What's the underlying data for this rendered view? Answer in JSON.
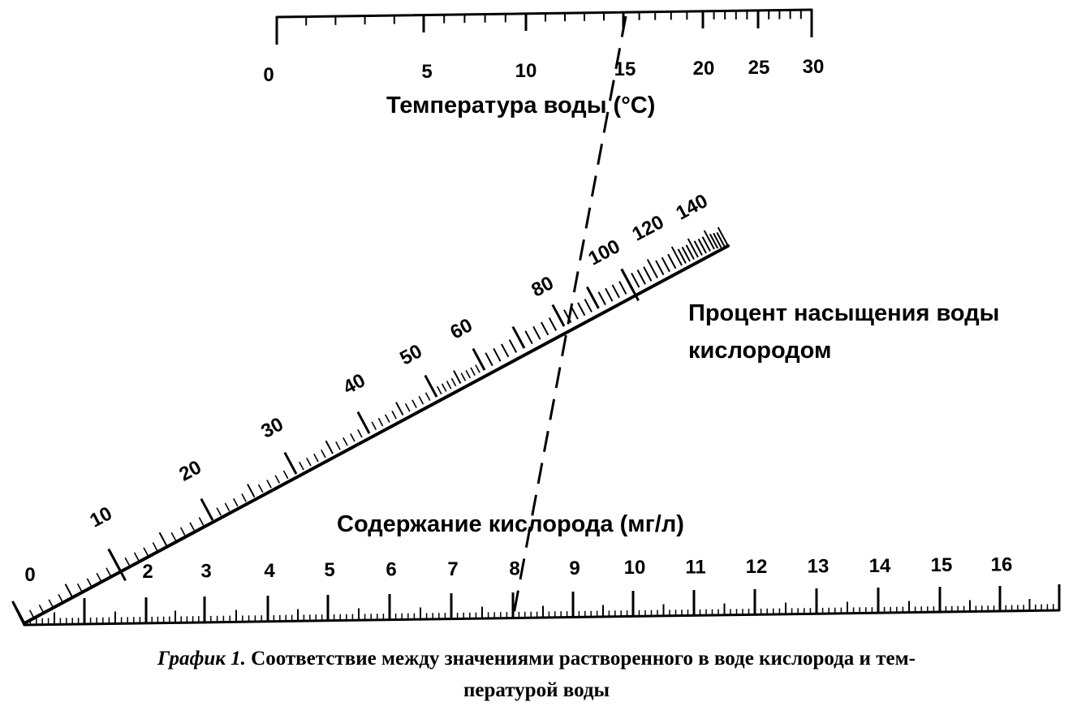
{
  "temperature_scale": {
    "title": "Температура воды (°C)",
    "labels": [
      {
        "value": 0,
        "text": "0"
      },
      {
        "value": 5,
        "text": "5"
      },
      {
        "value": 10,
        "text": "10"
      },
      {
        "value": 15,
        "text": "15"
      },
      {
        "value": 20,
        "text": "20"
      },
      {
        "value": 25,
        "text": "25"
      },
      {
        "value": 30,
        "text": "30"
      }
    ]
  },
  "saturation_scale": {
    "title_line1": "Процент насыщения воды",
    "title_line2": "кислородом",
    "labels": [
      {
        "value": 0,
        "text": "0"
      },
      {
        "value": 10,
        "text": "10"
      },
      {
        "value": 20,
        "text": "20"
      },
      {
        "value": 30,
        "text": "30"
      },
      {
        "value": 40,
        "text": "40"
      },
      {
        "value": 50,
        "text": "50"
      },
      {
        "value": 60,
        "text": "60"
      },
      {
        "value": 80,
        "text": "80"
      },
      {
        "value": 100,
        "text": "100"
      },
      {
        "value": 120,
        "text": "120"
      },
      {
        "value": 140,
        "text": "140"
      }
    ]
  },
  "oxygen_scale": {
    "title": "Содержание кислорода (мг/л)",
    "labels": [
      {
        "value": 2,
        "text": "2"
      },
      {
        "value": 3,
        "text": "3"
      },
      {
        "value": 4,
        "text": "4"
      },
      {
        "value": 5,
        "text": "5"
      },
      {
        "value": 6,
        "text": "6"
      },
      {
        "value": 7,
        "text": "7"
      },
      {
        "value": 8,
        "text": "8"
      },
      {
        "value": 9,
        "text": "9"
      },
      {
        "value": 10,
        "text": "10"
      },
      {
        "value": 11,
        "text": "11"
      },
      {
        "value": 12,
        "text": "12"
      },
      {
        "value": 13,
        "text": "13"
      },
      {
        "value": 14,
        "text": "14"
      },
      {
        "value": 15,
        "text": "15"
      },
      {
        "value": 16,
        "text": "16"
      }
    ]
  },
  "example_reading": {
    "temperature": 15,
    "saturation": 90,
    "oxygen": 8
  },
  "caption": {
    "lead": "График 1.",
    "line1": " Соответствие между значениями растворенного в воде кислорода и тем-",
    "line2": "пературой воды"
  }
}
